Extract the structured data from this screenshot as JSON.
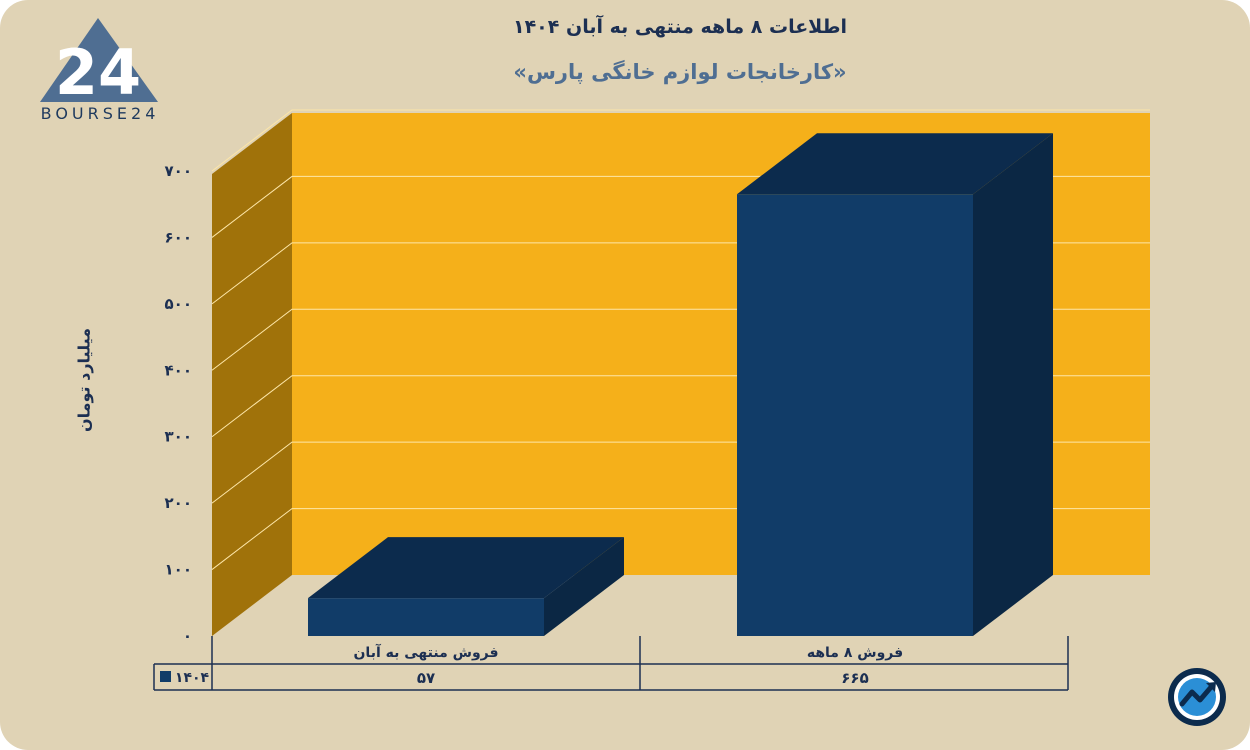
{
  "header": {
    "title": "اطلاعات ۸ ماهه منتهی به آبان ۱۴۰۴",
    "subtitle": "«کارخانجات لوازم خانگی پارس»"
  },
  "logo": {
    "text": "BOURSE24",
    "mark": "24"
  },
  "colors": {
    "background": "#e0d3b5",
    "plot_back": "#f5b01a",
    "plot_side": "#a0720a",
    "bar_front": "#113c68",
    "bar_top": "#0c2b4d",
    "bar_side": "#0b2744",
    "text": "#1c2f52",
    "accent": "#4f6e92"
  },
  "chart_data": {
    "type": "bar",
    "title": "اطلاعات ۸ ماهه منتهی به آبان ۱۴۰۴",
    "subtitle": "«کارخانجات لوازم خانگی پارس»",
    "ylabel": "میلیارد تومان",
    "ylim": [
      0,
      700
    ],
    "yticks": [
      0,
      100,
      200,
      300,
      400,
      500,
      600,
      700
    ],
    "ytick_labels": [
      "۰",
      "۱۰۰",
      "۲۰۰",
      "۳۰۰",
      "۴۰۰",
      "۵۰۰",
      "۶۰۰",
      "۷۰۰"
    ],
    "categories": [
      "فروش منتهی به  آبان",
      "فروش ۸  ماهه"
    ],
    "series": [
      {
        "name": "۱۴۰۴",
        "values": [
          57,
          665
        ],
        "value_labels": [
          "۵۷",
          "۶۶۵"
        ]
      }
    ],
    "grid": true,
    "legend": "table-left",
    "style": "3d-column"
  },
  "badge": {
    "icon": "trend-arrow-icon"
  }
}
